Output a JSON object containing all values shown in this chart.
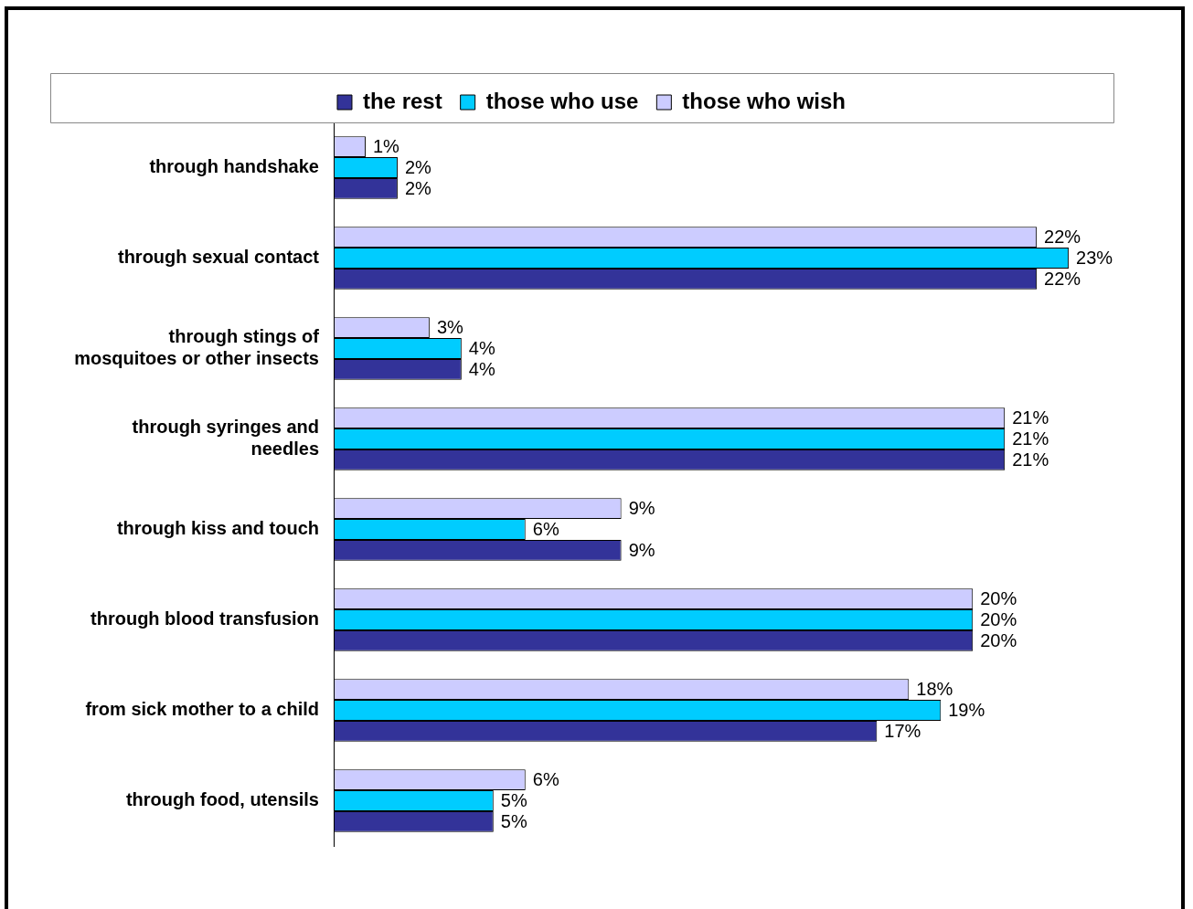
{
  "chart_data": {
    "type": "bar",
    "orientation": "horizontal",
    "legend": "top",
    "categories": [
      "through handshake",
      "through sexual contact",
      "through stings of\nmosquitoes or other insects",
      "through syringes and\nneedles",
      "through kiss and touch",
      "through blood transfusion",
      "from sick mother to a child",
      "through food, utensils"
    ],
    "series": [
      {
        "name": "those who wish",
        "color": "#ccccff",
        "values": [
          1,
          22,
          3,
          21,
          9,
          20,
          18,
          6
        ],
        "value_labels": [
          "1%",
          "22%",
          "3%",
          "21%",
          "9%",
          "20%",
          "18%",
          "6%"
        ]
      },
      {
        "name": "those who use",
        "color": "#00ccff",
        "values": [
          2,
          23,
          4,
          21,
          6,
          20,
          19,
          5
        ],
        "value_labels": [
          "2%",
          "23%",
          "4%",
          "21%",
          "6%",
          "20%",
          "19%",
          "5%"
        ]
      },
      {
        "name": "the rest",
        "color": "#333399",
        "values": [
          2,
          22,
          4,
          21,
          9,
          20,
          17,
          5
        ],
        "value_labels": [
          "2%",
          "22%",
          "4%",
          "21%",
          "9%",
          "20%",
          "17%",
          "5%"
        ]
      }
    ]
  }
}
